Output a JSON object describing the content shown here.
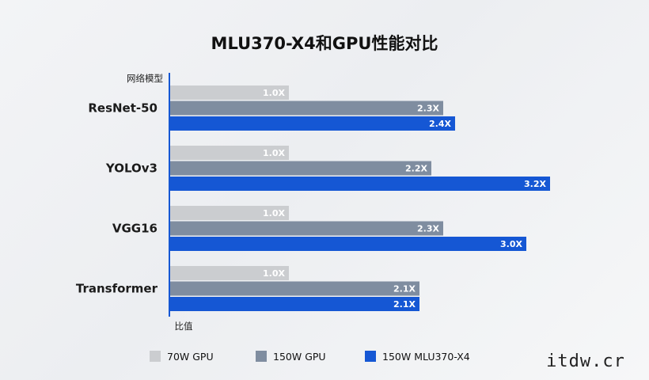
{
  "chart_data": {
    "type": "bar",
    "orientation": "horizontal",
    "title": "MLU370-X4和GPU性能对比",
    "ylabel": "网络模型",
    "xlabel": "比值",
    "categories": [
      "ResNet-50",
      "YOLOv3",
      "VGG16",
      "Transformer"
    ],
    "series": [
      {
        "name": "70W GPU",
        "color": "#cbcdd0",
        "values": [
          1.0,
          1.0,
          1.0,
          1.0
        ],
        "labels": [
          "1.0X",
          "1.0X",
          "1.0X",
          "1.0X"
        ]
      },
      {
        "name": "150W GPU",
        "color": "#7f8da0",
        "values": [
          2.3,
          2.2,
          2.3,
          2.1
        ],
        "labels": [
          "2.3X",
          "2.2X",
          "2.3X",
          "2.1X"
        ]
      },
      {
        "name": "150W MLU370-X4",
        "color": "#1557d4",
        "values": [
          2.4,
          3.2,
          3.0,
          2.1
        ],
        "labels": [
          "2.4X",
          "3.2X",
          "3.0X",
          "2.1X"
        ]
      }
    ],
    "grid": false,
    "legend_position": "bottom"
  },
  "watermark": "itdw.cr"
}
